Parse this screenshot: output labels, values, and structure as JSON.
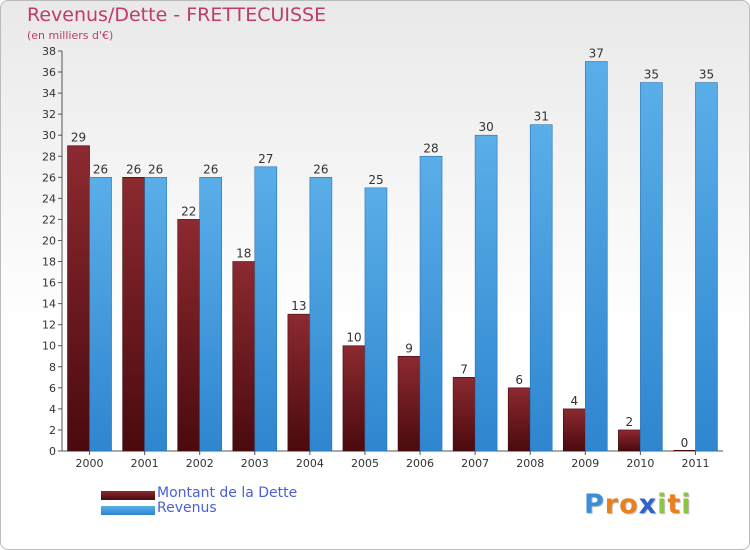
{
  "chart_data": {
    "type": "bar",
    "title": "Revenus/Dette - FRETTECUISSE",
    "subtitle": "(en milliers d'€)",
    "categories": [
      "2000",
      "2001",
      "2002",
      "2003",
      "2004",
      "2005",
      "2006",
      "2007",
      "2008",
      "2009",
      "2010",
      "2011"
    ],
    "series": [
      {
        "name": "Montant de la Dette",
        "values": [
          29,
          26,
          22,
          18,
          13,
          10,
          9,
          7,
          6,
          4,
          2,
          0
        ],
        "color": "#7a1e24"
      },
      {
        "name": "Revenus",
        "values": [
          26,
          26,
          26,
          27,
          26,
          25,
          28,
          30,
          31,
          37,
          35,
          35
        ],
        "color": "#3f9be0"
      }
    ],
    "ylim": [
      0,
      38
    ],
    "yticks": [
      0,
      2,
      4,
      6,
      8,
      10,
      12,
      14,
      16,
      18,
      20,
      22,
      24,
      26,
      28,
      30,
      32,
      34,
      36,
      38
    ],
    "grid": false,
    "legend": "bottom-left"
  },
  "colors": {
    "title": "#c03a6a",
    "debt_top": "#8c2a30",
    "debt_bottom": "#4a0a0e",
    "revenue_top": "#5aaee8",
    "revenue_bottom": "#2f86cf",
    "legend_text": "#4a5fd6"
  },
  "logo": {
    "letters": [
      "P",
      "r",
      "o",
      "x",
      "i",
      "t",
      "i"
    ],
    "letter_colors": [
      "#3a8fd8",
      "#e8801e",
      "#e8801e",
      "#2e63c8",
      "#8cc63e",
      "#e8801e",
      "#8cc63e"
    ]
  }
}
